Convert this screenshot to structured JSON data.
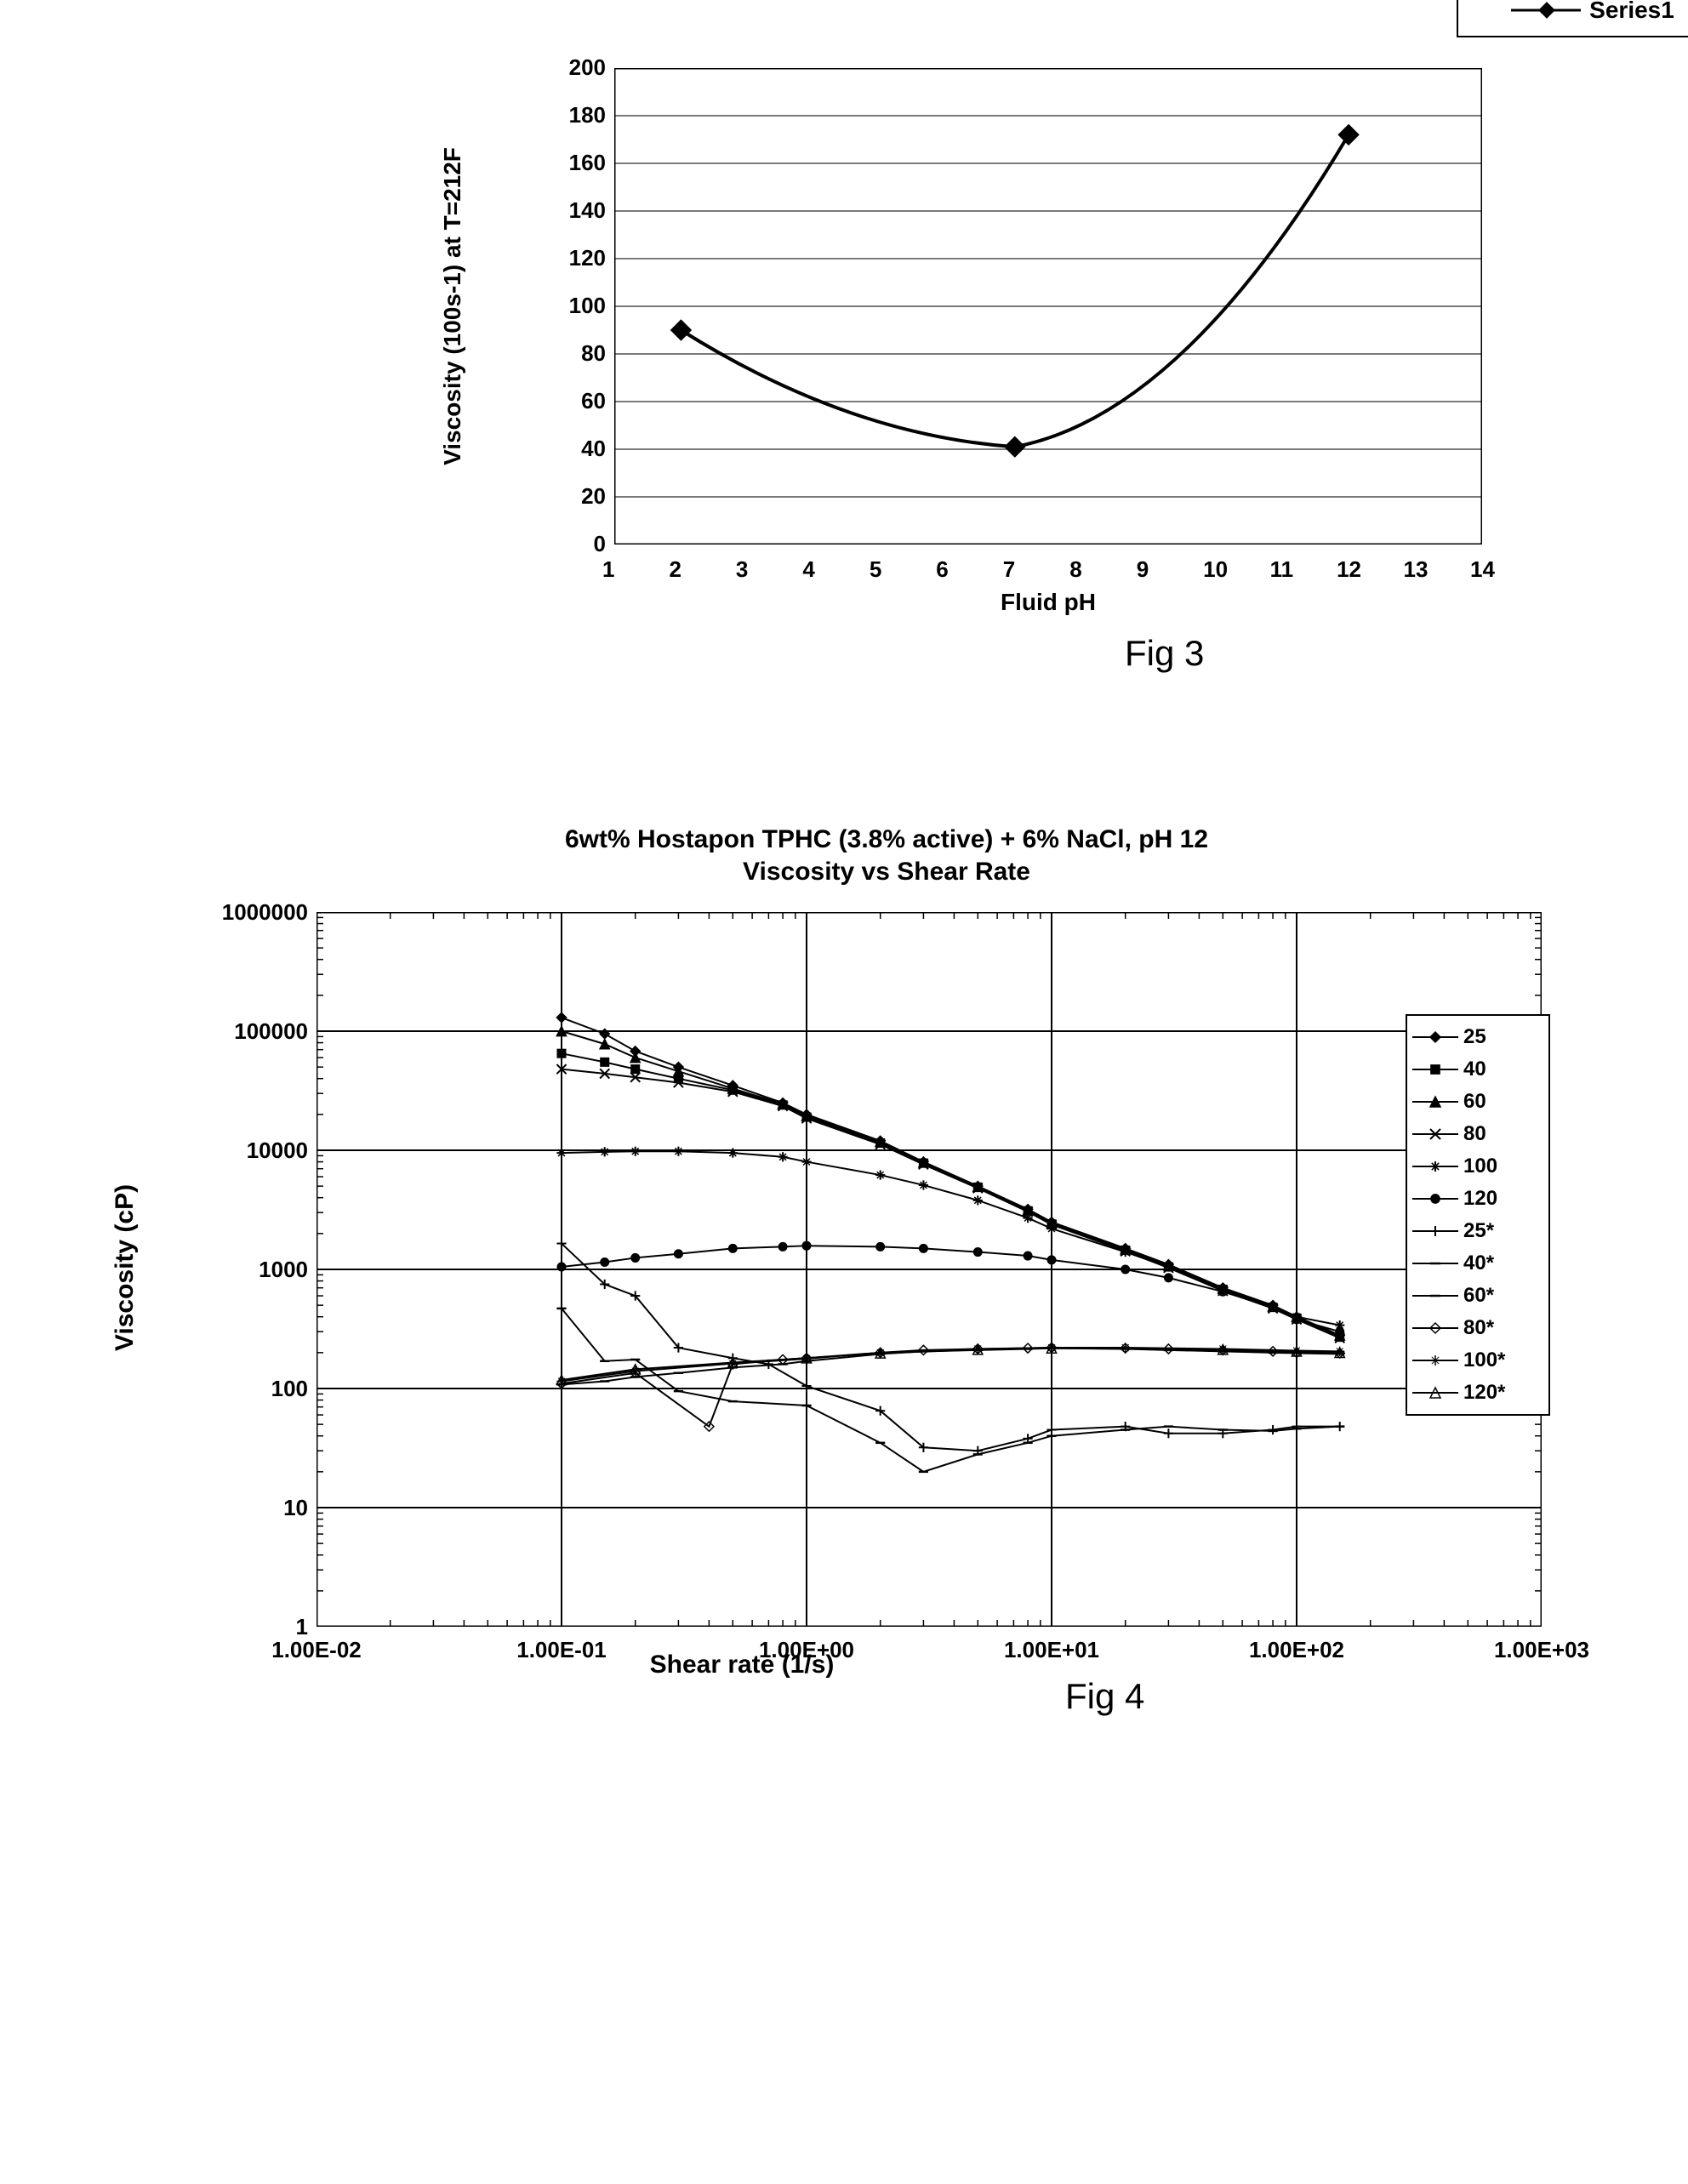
{
  "figure3": {
    "legend_label": "Series1",
    "fig_label": "Fig 3",
    "xlabel": "Fluid pH",
    "ylabel": "Viscosity (100s-1) at T=212F",
    "xlim": [
      1,
      14
    ],
    "ylim": [
      0,
      200
    ],
    "ytick_step": 20,
    "yticks": [
      0,
      20,
      40,
      60,
      80,
      100,
      120,
      140,
      160,
      180,
      200
    ],
    "xticks": [
      1,
      2,
      3,
      4,
      5,
      6,
      7,
      8,
      9,
      10,
      11,
      12,
      13,
      14
    ],
    "points": [
      {
        "x": 2,
        "y": 90
      },
      {
        "x": 7,
        "y": 41
      },
      {
        "x": 12,
        "y": 172
      }
    ],
    "line_color": "#000000",
    "marker_fill": "#000000",
    "marker_size": 12,
    "line_width": 3,
    "grid_color": "#7a7a7a",
    "border_color": "#000000",
    "background_color": "#ffffff",
    "tick_fontsize": 26,
    "label_fontsize": 28,
    "legend_fontsize": 28
  },
  "figure4": {
    "title_line1": "6wt% Hostapon TPHC (3.8% active) + 6% NaCl, pH 12",
    "title_line2": "Viscosity vs Shear Rate",
    "fig_label": "Fig 4",
    "xlabel": "Shear rate (1/s)",
    "ylabel": "Viscosity (cP)",
    "xlim_exp": [
      -2,
      3
    ],
    "ylim_exp": [
      0,
      6
    ],
    "xticks": [
      "1.00E-02",
      "1.00E-01",
      "1.00E+00",
      "1.00E+01",
      "1.00E+02",
      "1.00E+03"
    ],
    "yticks": [
      "1",
      "10",
      "100",
      "1000",
      "10000",
      "100000",
      "1000000"
    ],
    "legend_labels": [
      "25",
      "40",
      "60",
      "80",
      "100",
      "120",
      "25*",
      "40*",
      "60*",
      "80*",
      "100*",
      "120*"
    ],
    "legend_markers": [
      "diamond",
      "square",
      "triangle",
      "cross",
      "star",
      "dot",
      "plus",
      "hline",
      "hline",
      "diamond-open",
      "star-open",
      "triangle-open"
    ],
    "series_color": "#000000",
    "background_color": "#ffffff",
    "border_color": "#000000",
    "grid_color": "#000000",
    "line_width": 2,
    "marker_size": 8,
    "tick_fontsize": 26,
    "label_fontsize": 30,
    "title_fontsize": 30,
    "legend_fontsize": 24,
    "series": {
      "25": {
        "x": [
          0.1,
          0.15,
          0.2,
          0.3,
          0.5,
          0.8,
          1,
          2,
          3,
          5,
          8,
          10,
          20,
          30,
          50,
          80,
          100,
          150
        ],
        "y": [
          130000,
          95000,
          68000,
          50000,
          35000,
          25000,
          20000,
          12000,
          8000,
          5000,
          3200,
          2500,
          1500,
          1100,
          700,
          500,
          400,
          280
        ]
      },
      "40": {
        "x": [
          0.1,
          0.15,
          0.2,
          0.3,
          0.5,
          0.8,
          1,
          2,
          3,
          5,
          8,
          10,
          20,
          30,
          50,
          80,
          100,
          150
        ],
        "y": [
          65000,
          55000,
          48000,
          40000,
          32000,
          24000,
          19000,
          11500,
          7800,
          4900,
          3100,
          2400,
          1450,
          1050,
          680,
          480,
          390,
          270
        ]
      },
      "60": {
        "x": [
          0.1,
          0.15,
          0.2,
          0.3,
          0.5,
          0.8,
          1,
          2,
          3,
          5,
          8,
          10,
          20,
          30,
          50,
          80,
          100,
          150
        ],
        "y": [
          100000,
          78000,
          60000,
          46000,
          33000,
          24500,
          19500,
          11800,
          7900,
          4950,
          3150,
          2450,
          1480,
          1080,
          690,
          490,
          400,
          280
        ]
      },
      "80": {
        "x": [
          0.1,
          0.15,
          0.2,
          0.3,
          0.5,
          0.8,
          1,
          2,
          3,
          5,
          8,
          10,
          20,
          30,
          50,
          80,
          100,
          150
        ],
        "y": [
          48000,
          44000,
          41000,
          37000,
          31000,
          23500,
          18500,
          11200,
          7600,
          4800,
          3050,
          2380,
          1420,
          1030,
          660,
          470,
          380,
          265
        ]
      },
      "100": {
        "x": [
          0.1,
          0.15,
          0.2,
          0.3,
          0.5,
          0.8,
          1,
          2,
          3,
          5,
          8,
          10,
          20,
          30,
          50,
          80,
          100,
          150
        ],
        "y": [
          9500,
          9700,
          9800,
          9800,
          9500,
          8800,
          8000,
          6200,
          5100,
          3800,
          2700,
          2200,
          1400,
          1050,
          680,
          490,
          400,
          340
        ]
      },
      "120": {
        "x": [
          0.1,
          0.15,
          0.2,
          0.3,
          0.5,
          0.8,
          1,
          2,
          3,
          5,
          8,
          10,
          20,
          30,
          50,
          80,
          100,
          150
        ],
        "y": [
          1050,
          1150,
          1250,
          1350,
          1500,
          1550,
          1580,
          1550,
          1500,
          1400,
          1300,
          1200,
          1000,
          850,
          650,
          480,
          380,
          300
        ]
      },
      "25*": {
        "x": [
          0.1,
          0.15,
          0.2,
          0.3,
          0.5,
          0.7,
          1,
          2,
          3,
          5,
          8,
          10,
          20,
          30,
          50,
          80,
          100,
          150
        ],
        "y": [
          1650,
          750,
          600,
          220,
          180,
          160,
          105,
          65,
          32,
          30,
          38,
          45,
          48,
          42,
          42,
          45,
          48,
          48
        ]
      },
      "40*": {
        "x": [
          0.1,
          0.15,
          0.2,
          0.3,
          0.5,
          1,
          2,
          3,
          5,
          8,
          10,
          20,
          30,
          50,
          80,
          100,
          150
        ],
        "y": [
          470,
          170,
          175,
          95,
          78,
          72,
          35,
          20,
          28,
          35,
          40,
          45,
          48,
          45,
          44,
          46,
          48
        ]
      },
      "60*": {
        "x": [
          0.1,
          0.15,
          0.2,
          0.3,
          0.5,
          0.8,
          1,
          2,
          3,
          5,
          8,
          10,
          20,
          30,
          50,
          80,
          100,
          150
        ],
        "y": [
          108,
          115,
          125,
          135,
          150,
          160,
          170,
          195,
          205,
          210,
          215,
          218,
          215,
          210,
          205,
          200,
          198,
          195
        ]
      },
      "80*": {
        "x": [
          0.1,
          0.2,
          0.4,
          0.5,
          0.8,
          1,
          2,
          3,
          5,
          8,
          10,
          20,
          30,
          50,
          80,
          100,
          150
        ],
        "y": [
          110,
          135,
          48,
          160,
          175,
          180,
          200,
          210,
          215,
          218,
          220,
          218,
          215,
          210,
          205,
          200,
          198
        ]
      },
      "100*": {
        "x": [
          0.1,
          0.2,
          0.5,
          1,
          2,
          5,
          10,
          20,
          50,
          100,
          150
        ],
        "y": [
          115,
          140,
          162,
          178,
          200,
          215,
          220,
          220,
          215,
          208,
          205
        ]
      },
      "120*": {
        "x": [
          0.1,
          0.2,
          0.5,
          1,
          2,
          5,
          10,
          50,
          100,
          150
        ],
        "y": [
          118,
          145,
          165,
          180,
          198,
          212,
          218,
          212,
          205,
          200
        ]
      }
    }
  }
}
